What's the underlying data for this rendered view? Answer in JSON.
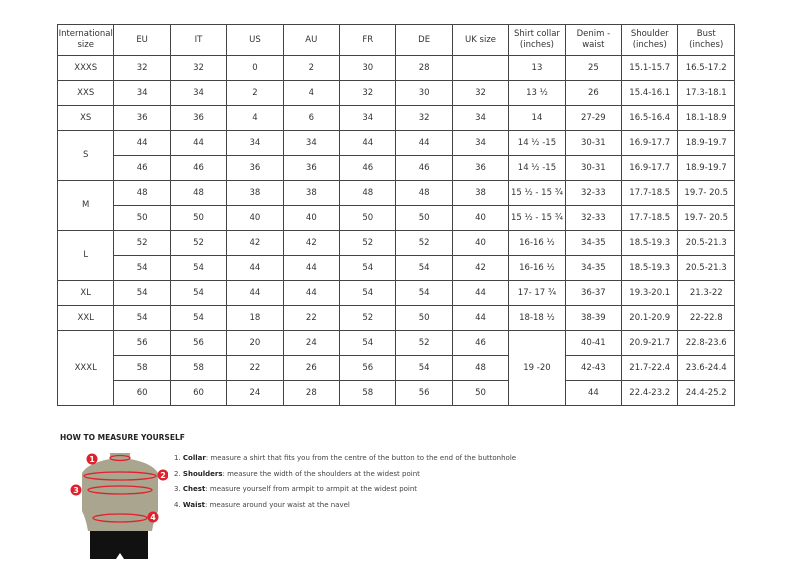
{
  "headers": [
    "International size",
    "EU",
    "IT",
    "US",
    "AU",
    "FR",
    "DE",
    "UK size",
    "Shirt collar (inches)",
    "Denim - waist",
    "Shoulder (inches)",
    "Bust (inches)"
  ],
  "groups": [
    {
      "size": "XXXS",
      "rows": [
        [
          "32",
          "32",
          "0",
          "2",
          "30",
          "28",
          "",
          "13",
          "25",
          "15.1-15.7",
          "16.5-17.2"
        ]
      ]
    },
    {
      "size": "XXS",
      "rows": [
        [
          "34",
          "34",
          "2",
          "4",
          "32",
          "30",
          "32",
          "13 ½",
          "26",
          "15.4-16.1",
          "17.3-18.1"
        ]
      ]
    },
    {
      "size": "XS",
      "rows": [
        [
          "36",
          "36",
          "4",
          "6",
          "34",
          "32",
          "34",
          "14",
          "27-29",
          "16.5-16.4",
          "18.1-18.9"
        ]
      ]
    },
    {
      "size": "S",
      "rows": [
        [
          "44",
          "44",
          "34",
          "34",
          "44",
          "44",
          "34",
          "14 ½ -15",
          "30-31",
          "16.9-17.7",
          "18.9-19.7"
        ],
        [
          "46",
          "46",
          "36",
          "36",
          "46",
          "46",
          "36",
          "14 ½ -15",
          "30-31",
          "16.9-17.7",
          "18.9-19.7"
        ]
      ]
    },
    {
      "size": "M",
      "rows": [
        [
          "48",
          "48",
          "38",
          "38",
          "48",
          "48",
          "38",
          "15 ½ - 15 ¾",
          "32-33",
          "17.7-18.5",
          "19.7- 20.5"
        ],
        [
          "50",
          "50",
          "40",
          "40",
          "50",
          "50",
          "40",
          "15 ½ - 15 ¾",
          "32-33",
          "17.7-18.5",
          "19.7- 20.5"
        ]
      ]
    },
    {
      "size": "L",
      "rows": [
        [
          "52",
          "52",
          "42",
          "42",
          "52",
          "52",
          "40",
          "16-16 ½",
          "34-35",
          "18.5-19.3",
          "20.5-21.3"
        ],
        [
          "54",
          "54",
          "44",
          "44",
          "54",
          "54",
          "42",
          "16-16 ½",
          "34-35",
          "18.5-19.3",
          "20.5-21.3"
        ]
      ]
    },
    {
      "size": "XL",
      "rows": [
        [
          "54",
          "54",
          "44",
          "44",
          "54",
          "54",
          "44",
          "17- 17 ¾",
          "36-37",
          "19.3-20.1",
          "21.3-22"
        ]
      ]
    },
    {
      "size": "XXL",
      "rows": [
        [
          "54",
          "54",
          "18",
          "22",
          "52",
          "50",
          "44",
          "18-18 ½",
          "38-39",
          "20.1-20.9",
          "22-22.8"
        ]
      ]
    },
    {
      "size": "XXXL",
      "collar": "19 -20",
      "rows": [
        [
          "56",
          "56",
          "20",
          "24",
          "54",
          "52",
          "46",
          "",
          "40-41",
          "20.9-21.7",
          "22.8-23.6"
        ],
        [
          "58",
          "58",
          "22",
          "26",
          "56",
          "54",
          "48",
          "",
          "42-43",
          "21.7-22.4",
          "23.6-24.4"
        ],
        [
          "60",
          "60",
          "24",
          "28",
          "58",
          "56",
          "50",
          "",
          "44",
          "22.4-23.2",
          "24.4-25.2"
        ]
      ]
    }
  ],
  "howto": {
    "title": "HOW TO MEASURE YOURSELF",
    "steps": [
      {
        "n": "1.",
        "label": "Collar",
        "text": ": measure a shirt that fits you from the centre of the button to the end of the buttonhole"
      },
      {
        "n": "2.",
        "label": "Shoulders",
        "text": ": measure the width of the shoulders at the widest point"
      },
      {
        "n": "3.",
        "label": "Chest",
        "text": ": measure yourself from armpit to armpit at the widest point"
      },
      {
        "n": "4.",
        "label": "Waist",
        "text": ": measure around your waist at the navel"
      }
    ],
    "markers": [
      "1",
      "2",
      "3",
      "4"
    ]
  },
  "colors": {
    "marker": "#e0202c",
    "torso": "#a9a58f",
    "shorts": "#111111"
  }
}
